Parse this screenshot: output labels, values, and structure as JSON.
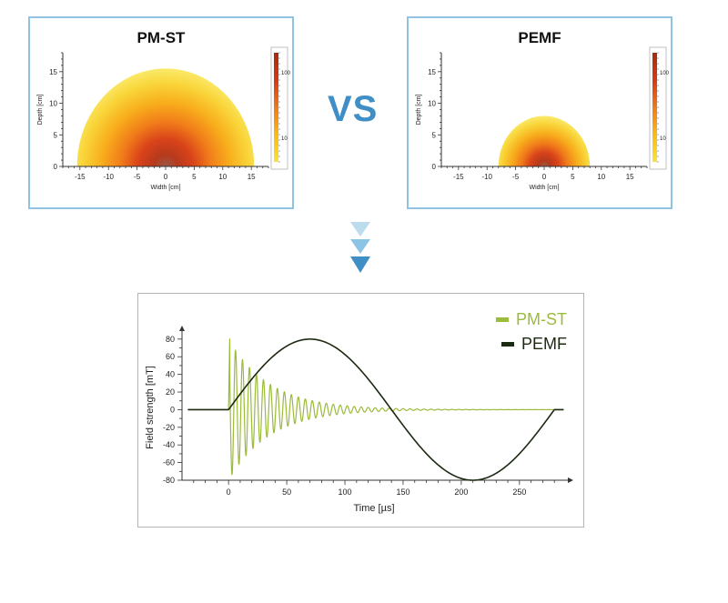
{
  "separator_text": "VS",
  "chart_data": [
    {
      "type": "heatmap",
      "title": "PM-ST",
      "xlabel": "Width [cm]",
      "ylabel": "Depth [cm]",
      "xlim": [
        -18,
        18
      ],
      "ylim": [
        0,
        18
      ],
      "xticks": [
        "-15",
        "-10",
        "-5",
        "0",
        "5",
        "10",
        "15"
      ],
      "yticks": [
        "0",
        "5",
        "10",
        "15"
      ],
      "field_radius_cm": 15.5,
      "colorbar": {
        "label": "B field [mT]",
        "ticks": [
          "100",
          "10"
        ],
        "colors": [
          "#a52a10",
          "#d23b17",
          "#f07a1a",
          "#f8ba1c",
          "#f9e23c"
        ]
      }
    },
    {
      "type": "heatmap",
      "title": "PEMF",
      "xlabel": "Width [cm]",
      "ylabel": "Depth [cm]",
      "xlim": [
        -18,
        18
      ],
      "ylim": [
        0,
        18
      ],
      "xticks": [
        "-15",
        "-10",
        "-5",
        "0",
        "5",
        "10",
        "15"
      ],
      "yticks": [
        "0",
        "5",
        "10",
        "15"
      ],
      "field_radius_cm": 8,
      "colorbar": {
        "label": "B field [mT]",
        "ticks": [
          "100",
          "10"
        ],
        "colors": [
          "#a52a10",
          "#d23b17",
          "#f07a1a",
          "#f8ba1c",
          "#f9e23c"
        ]
      }
    },
    {
      "type": "line",
      "xlabel": "Time [µs]",
      "ylabel": "Field strength [mT]",
      "xlim": [
        -40,
        290
      ],
      "ylim": [
        -80,
        85
      ],
      "xticks": [
        0,
        50,
        100,
        150,
        200,
        250
      ],
      "yticks": [
        80,
        60,
        40,
        20,
        0,
        -20,
        -40,
        -60,
        -80
      ],
      "series": [
        {
          "name": "PM-ST",
          "color": "#9bbb3a",
          "signal": "damped-sine",
          "onset_us": 0,
          "amplitude_mT": 80,
          "period_us": 6,
          "decay_us": 35,
          "end_us": 280
        },
        {
          "name": "PEMF",
          "color": "#1c2a12",
          "signal": "sine",
          "onset_us": 0,
          "amplitude_mT": 80,
          "period_us": 280,
          "end_us": 280
        }
      ]
    }
  ]
}
